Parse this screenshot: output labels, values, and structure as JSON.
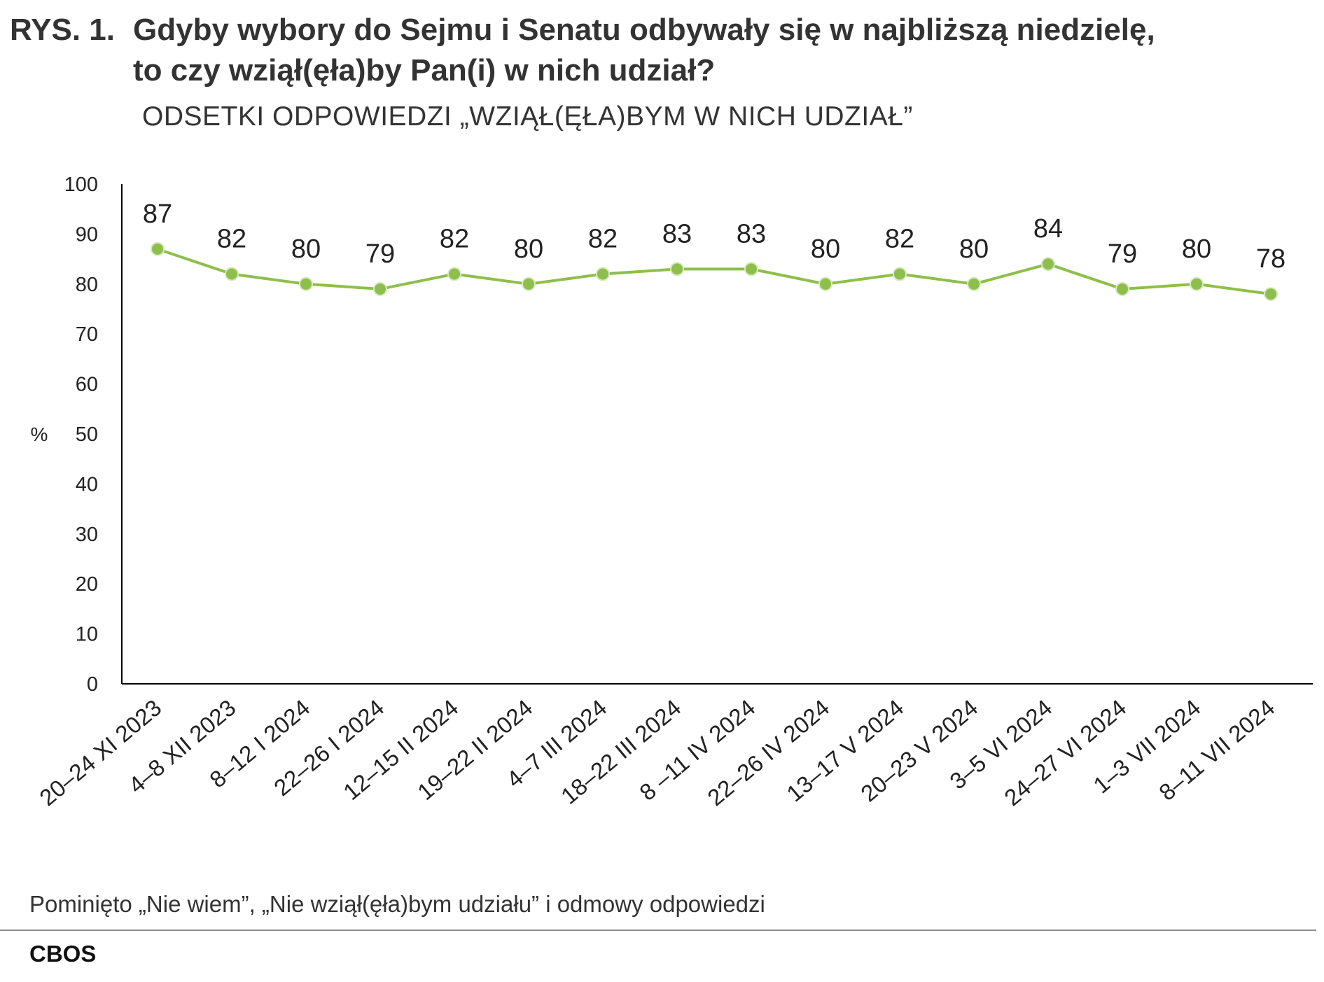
{
  "header": {
    "figure_number": "RYS. 1.",
    "title_line1": "Gdyby wybory do Sejmu i Senatu odbywały się w najbliższą niedzielę,",
    "title_line2": "to czy wziął(ęła)by Pan(i) w nich udział?",
    "subtitle": "ODSETKI ODPOWIEDZI „WZIĄŁ(ĘŁA)BYM W NICH UDZIAŁ”"
  },
  "chart_data": {
    "type": "line",
    "ylabel": "%",
    "ylim": [
      0,
      100
    ],
    "yticks": [
      0,
      10,
      20,
      30,
      40,
      50,
      60,
      70,
      80,
      90,
      100
    ],
    "categories": [
      "20–24 XI 2023",
      "4–8 XII 2023",
      "8–12 I 2024",
      "22–26 I 2024",
      "12–15 II 2024",
      "19–22 II 2024",
      "4–7 III 2024",
      "18–22 III 2024",
      "8 –11 IV 2024",
      "22–26 IV 2024",
      "13–17 V 2024",
      "20–23 V 2024",
      "3–5 VI 2024",
      "24–27 VI 2024",
      "1–3 VII 2024",
      "8–11 VII 2024"
    ],
    "series": [
      {
        "values": [
          87,
          82,
          80,
          79,
          82,
          80,
          82,
          83,
          83,
          80,
          82,
          80,
          84,
          79,
          80,
          78
        ],
        "color": "#8dbf4a"
      }
    ],
    "grid": false,
    "data_labels": true
  },
  "footer": {
    "note": "Pominięto „Nie wiem”, „Nie wziął(ęła)bym udziału” i odmowy odpowiedzi",
    "source": "CBOS"
  }
}
